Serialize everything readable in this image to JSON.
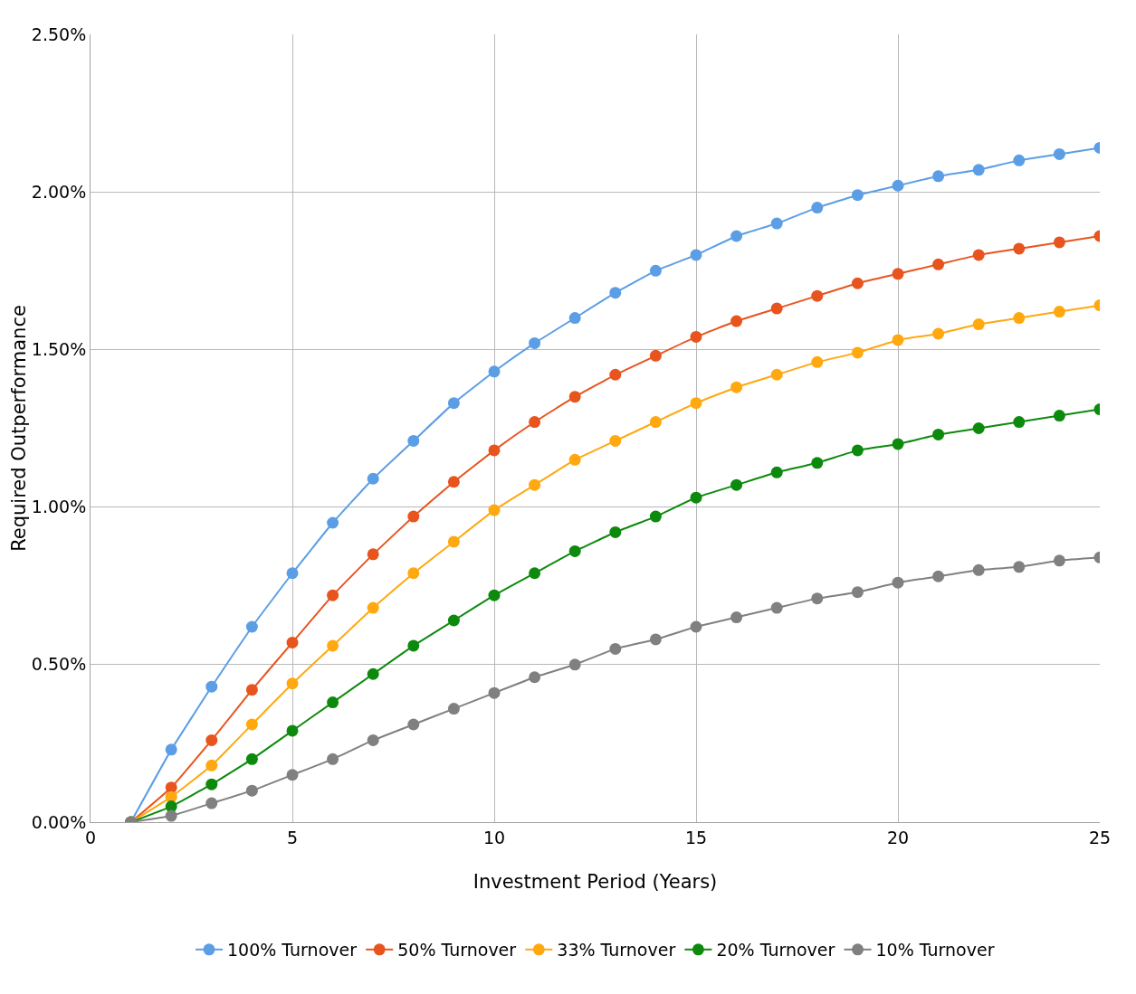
{
  "chart_data": {
    "type": "line",
    "xlabel": "Investment Period (Years)",
    "ylabel": "Required Outperformance",
    "x": [
      1,
      2,
      3,
      4,
      5,
      6,
      7,
      8,
      9,
      10,
      11,
      12,
      13,
      14,
      15,
      16,
      17,
      18,
      19,
      20,
      21,
      22,
      23,
      24,
      25
    ],
    "xlim": [
      0,
      25
    ],
    "xticks": [
      0,
      5,
      10,
      15,
      20,
      25
    ],
    "ylim": [
      0,
      2.5
    ],
    "yticks": [
      {
        "value": 0,
        "label": "0.00%"
      },
      {
        "value": 0.5,
        "label": "0.50%"
      },
      {
        "value": 1,
        "label": "1.00%"
      },
      {
        "value": 1.5,
        "label": "1.50%"
      },
      {
        "value": 2,
        "label": "2.00%"
      },
      {
        "value": 2.5,
        "label": "2.50%"
      }
    ],
    "grid": true,
    "legend": "bottom",
    "marker": "circle",
    "line_style": "solid",
    "series": [
      {
        "name": "100% Turnover",
        "color": "#5b9ee6",
        "values": [
          0,
          0.23,
          0.43,
          0.62,
          0.79,
          0.95,
          1.09,
          1.21,
          1.33,
          1.43,
          1.52,
          1.6,
          1.68,
          1.75,
          1.8,
          1.86,
          1.9,
          1.95,
          1.99,
          2.02,
          2.05,
          2.07,
          2.1,
          2.12,
          2.14
        ]
      },
      {
        "name": "50% Turnover",
        "color": "#e8541e",
        "values": [
          0,
          0.11,
          0.26,
          0.42,
          0.57,
          0.72,
          0.85,
          0.97,
          1.08,
          1.18,
          1.27,
          1.35,
          1.42,
          1.48,
          1.54,
          1.59,
          1.63,
          1.67,
          1.71,
          1.74,
          1.77,
          1.8,
          1.82,
          1.84,
          1.86
        ]
      },
      {
        "name": "33% Turnover",
        "color": "#ffa80f",
        "values": [
          0,
          0.08,
          0.18,
          0.31,
          0.44,
          0.56,
          0.68,
          0.79,
          0.89,
          0.99,
          1.07,
          1.15,
          1.21,
          1.27,
          1.33,
          1.38,
          1.42,
          1.46,
          1.49,
          1.53,
          1.55,
          1.58,
          1.6,
          1.62,
          1.64
        ]
      },
      {
        "name": "20% Turnover",
        "color": "#0d8a0d",
        "values": [
          0,
          0.05,
          0.12,
          0.2,
          0.29,
          0.38,
          0.47,
          0.56,
          0.64,
          0.72,
          0.79,
          0.86,
          0.92,
          0.97,
          1.03,
          1.07,
          1.11,
          1.14,
          1.18,
          1.2,
          1.23,
          1.25,
          1.27,
          1.29,
          1.31
        ]
      },
      {
        "name": "10% Turnover",
        "color": "#808080",
        "values": [
          0,
          0.02,
          0.06,
          0.1,
          0.15,
          0.2,
          0.26,
          0.31,
          0.36,
          0.41,
          0.46,
          0.5,
          0.55,
          0.58,
          0.62,
          0.65,
          0.68,
          0.71,
          0.73,
          0.76,
          0.78,
          0.8,
          0.81,
          0.83,
          0.84
        ]
      }
    ]
  }
}
